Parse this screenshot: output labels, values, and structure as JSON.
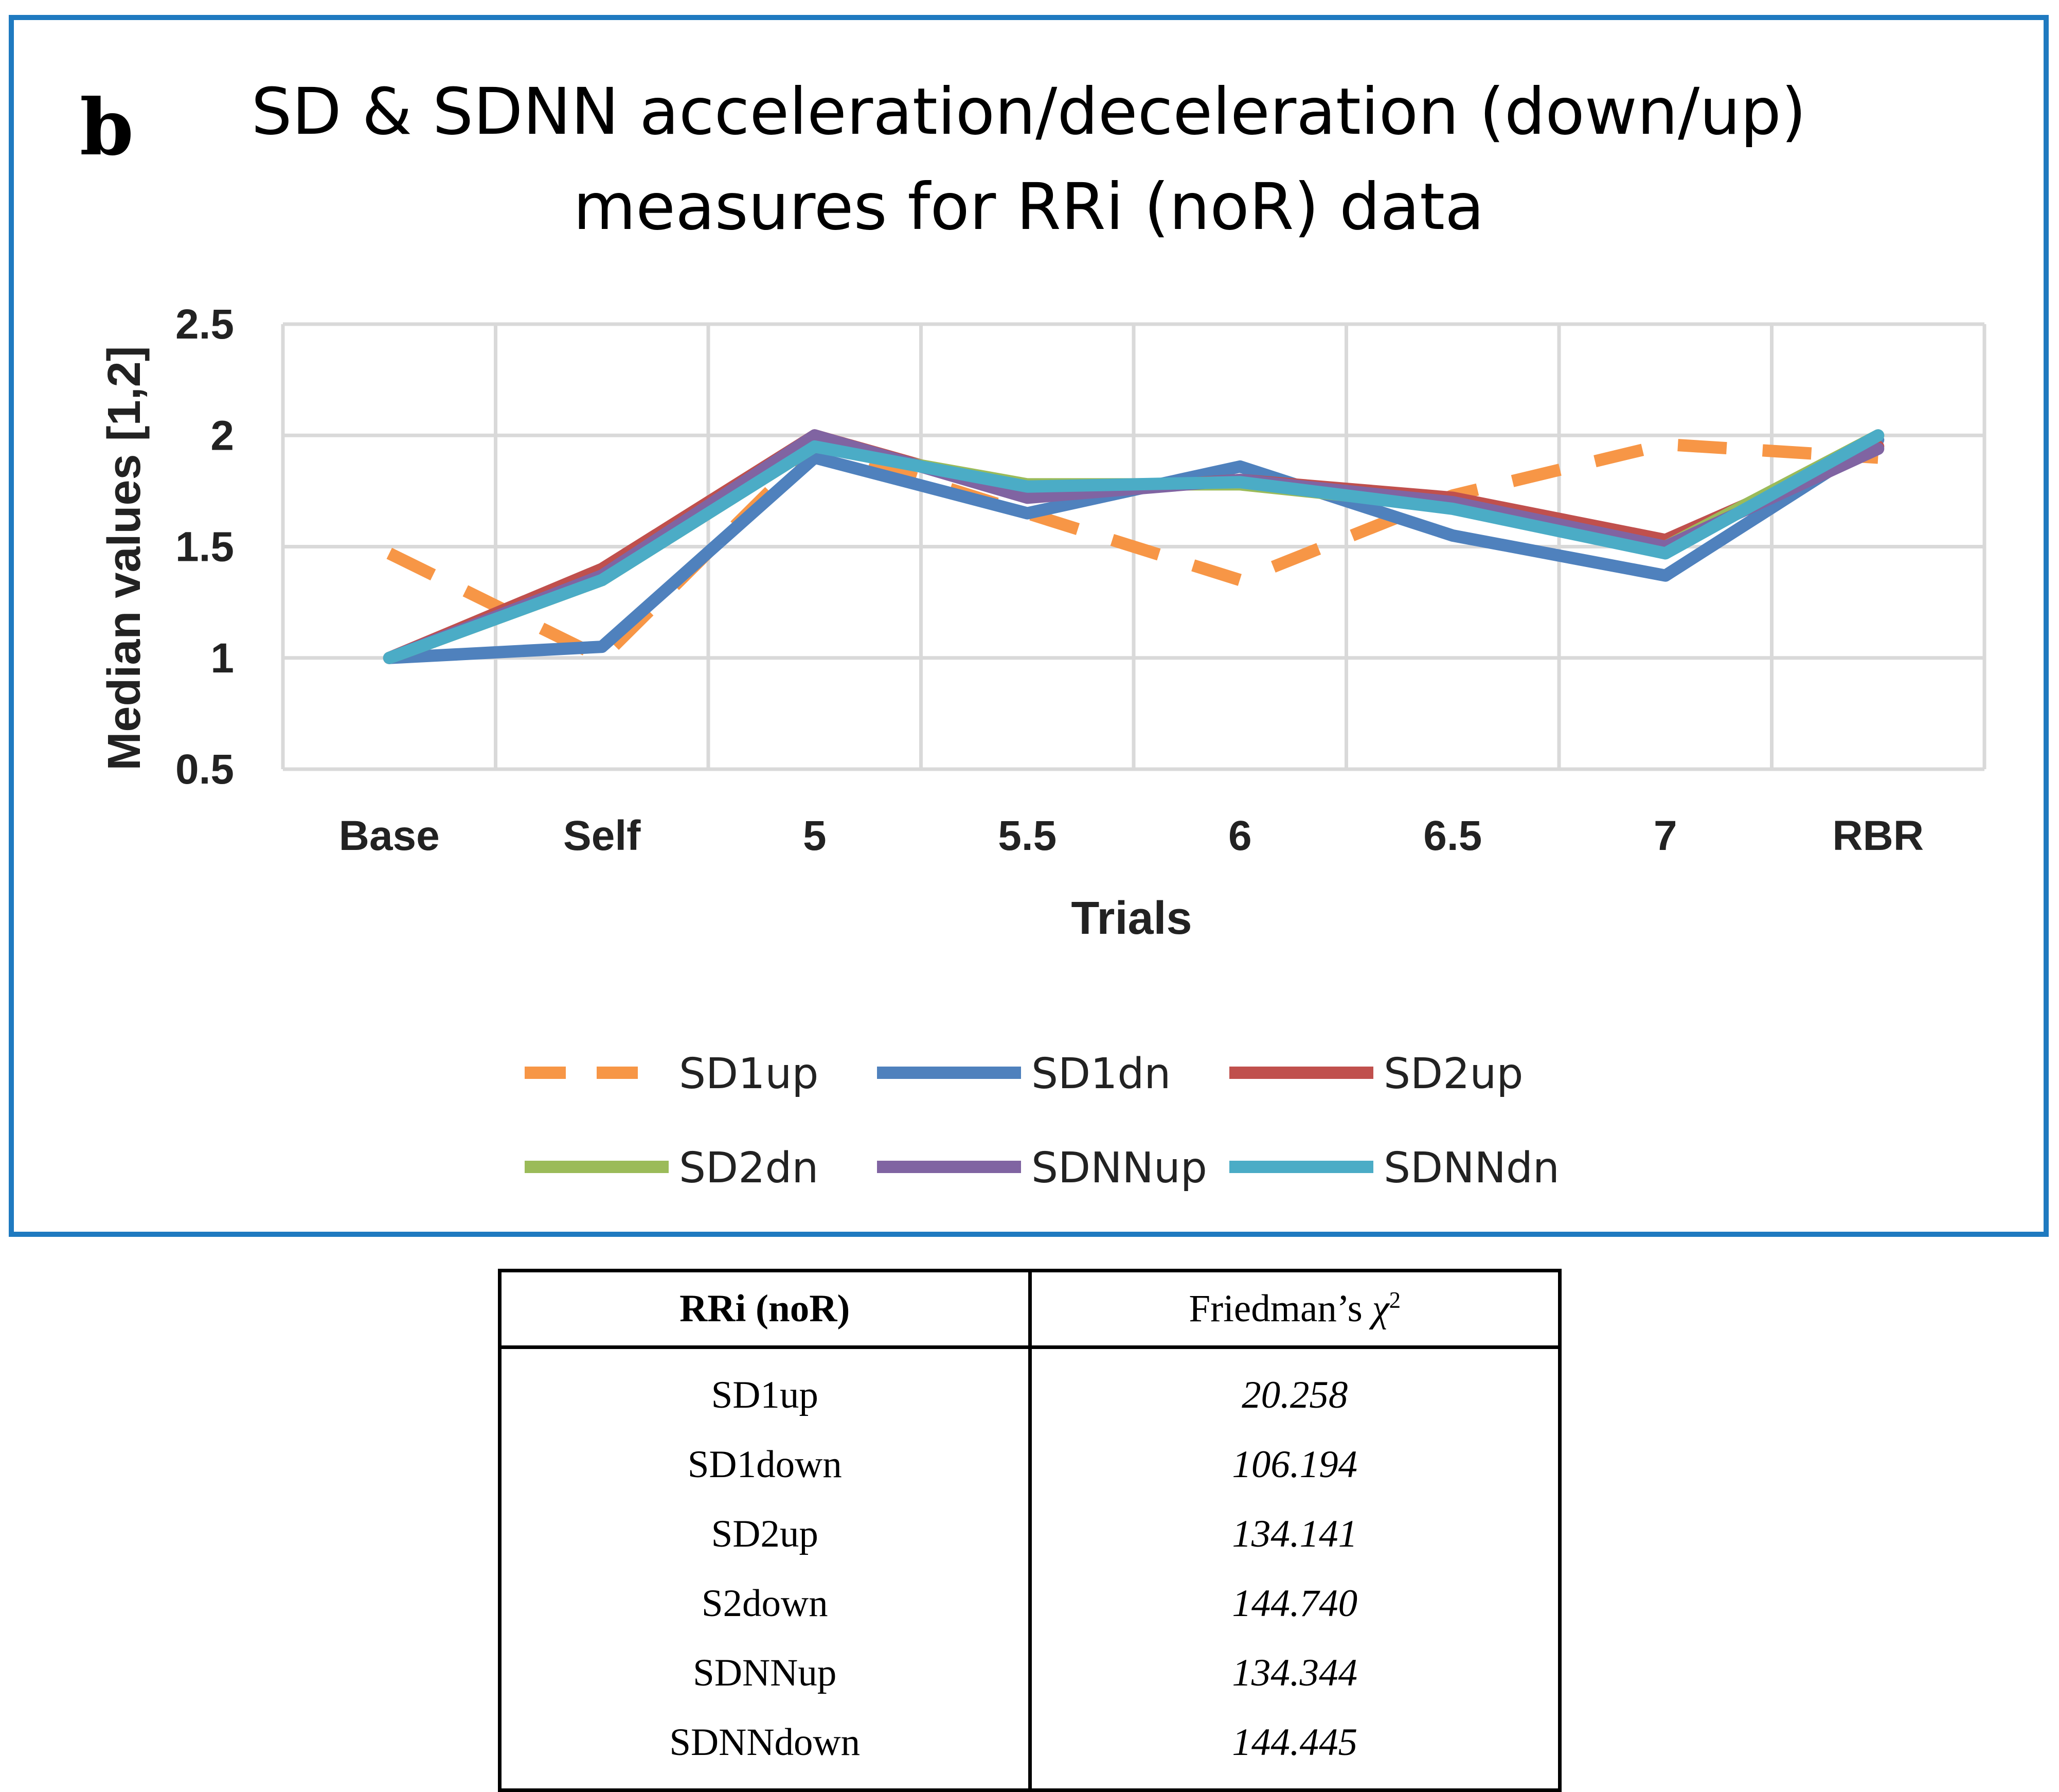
{
  "panel_label": "b",
  "chart_data": {
    "type": "line",
    "title": "SD & SDNN acceleration/deceleration (down/up) measures for RRi (noR) data",
    "title_lines": [
      "SD & SDNN acceleration/deceleration  (down/up)",
      "measures for RRi (noR) data"
    ],
    "xlabel": "Trials",
    "ylabel": "Median values [1,2]",
    "categories": [
      "Base",
      "Self",
      "5",
      "5.5",
      "6",
      "6.5",
      "7",
      "RBR"
    ],
    "ylim": [
      0.5,
      2.5
    ],
    "yticks": [
      0.5,
      1,
      1.5,
      2,
      2.5
    ],
    "ytick_labels": [
      "0.5",
      "1",
      "1.5",
      "2",
      "2.5"
    ],
    "grid": true,
    "legend_position": "bottom",
    "series": [
      {
        "name": "SD1up",
        "values": [
          1.47,
          1.0,
          1.95,
          1.65,
          1.35,
          1.73,
          1.96,
          1.9
        ],
        "color": "#f79646",
        "dash": true
      },
      {
        "name": "SD1dn",
        "values": [
          1.0,
          1.05,
          1.9,
          1.65,
          1.86,
          1.55,
          1.37,
          1.98
        ],
        "color": "#4f81bd",
        "dash": false
      },
      {
        "name": "SD2up",
        "values": [
          1.0,
          1.4,
          2.0,
          1.73,
          1.8,
          1.72,
          1.53,
          1.95
        ],
        "color": "#c0504d",
        "dash": false
      },
      {
        "name": "SD2dn",
        "values": [
          1.0,
          1.35,
          1.95,
          1.78,
          1.78,
          1.68,
          1.5,
          2.0
        ],
        "color": "#9bbb59",
        "dash": false
      },
      {
        "name": "SDNNup",
        "values": [
          1.0,
          1.37,
          2.0,
          1.72,
          1.8,
          1.7,
          1.5,
          1.94
        ],
        "color": "#8064a2",
        "dash": false
      },
      {
        "name": "SDNNdn",
        "values": [
          1.0,
          1.35,
          1.95,
          1.77,
          1.79,
          1.67,
          1.47,
          2.0
        ],
        "color": "#4bacc6",
        "dash": false
      }
    ]
  },
  "table": {
    "header_col1": "RRi (noR)",
    "header_col2_text": "Friedman’s ",
    "header_col2_symbol": "χ",
    "header_col2_sup": "2",
    "rows": [
      {
        "name": "SD1up",
        "value": "20.258"
      },
      {
        "name": "SD1down",
        "value": "106.194"
      },
      {
        "name": "SD2up",
        "value": "134.141"
      },
      {
        "name": "S2down",
        "value": "144.740"
      },
      {
        "name": "SDNNup",
        "value": "134.344"
      },
      {
        "name": "SDNNdown",
        "value": "144.445"
      }
    ]
  }
}
